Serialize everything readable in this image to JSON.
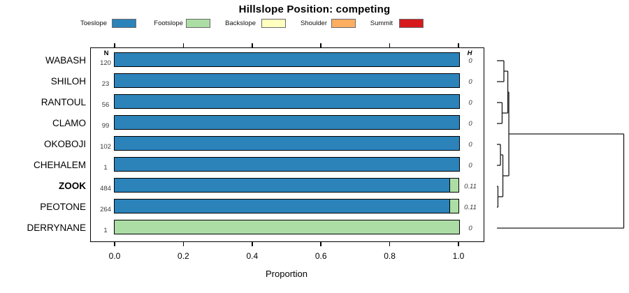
{
  "title": "Hillslope Position: competing",
  "columns": {
    "n": "N",
    "h": "H"
  },
  "legend": {
    "items": [
      {
        "label": "Toeslope",
        "color": "#2B83BA"
      },
      {
        "label": "Footslope",
        "color": "#ABDDA4"
      },
      {
        "label": "Backslope",
        "color": "#FFFFBF"
      },
      {
        "label": "Shoulder",
        "color": "#FDAE61"
      },
      {
        "label": "Summit",
        "color": "#D7191C"
      }
    ]
  },
  "chart_data": {
    "type": "bar",
    "orientation": "horizontal",
    "stacked": true,
    "title": "Hillslope Position: competing",
    "xlabel": "Proportion",
    "xlim": [
      0,
      1
    ],
    "xticks": [
      "0.0",
      "0.2",
      "0.4",
      "0.6",
      "0.8",
      "1.0"
    ],
    "grid": false,
    "legend_position": "top",
    "categories": [
      "Toeslope",
      "Footslope",
      "Backslope",
      "Shoulder",
      "Summit"
    ],
    "category_colors": {
      "Toeslope": "#2B83BA",
      "Footslope": "#ABDDA4",
      "Backslope": "#FFFFBF",
      "Shoulder": "#FDAE61",
      "Summit": "#D7191C"
    },
    "rows": [
      {
        "label": "WABASH",
        "n": 120,
        "h": "0",
        "bold": false,
        "segments": [
          {
            "name": "Toeslope",
            "value": 1.0
          }
        ]
      },
      {
        "label": "SHILOH",
        "n": 23,
        "h": "0",
        "bold": false,
        "segments": [
          {
            "name": "Toeslope",
            "value": 1.0
          }
        ]
      },
      {
        "label": "RANTOUL",
        "n": 56,
        "h": "0",
        "bold": false,
        "segments": [
          {
            "name": "Toeslope",
            "value": 1.0
          }
        ]
      },
      {
        "label": "CLAMO",
        "n": 99,
        "h": "0",
        "bold": false,
        "segments": [
          {
            "name": "Toeslope",
            "value": 1.0
          }
        ]
      },
      {
        "label": "OKOBOJI",
        "n": 102,
        "h": "0",
        "bold": false,
        "segments": [
          {
            "name": "Toeslope",
            "value": 1.0
          }
        ]
      },
      {
        "label": "CHEHALEM",
        "n": 1,
        "h": "0",
        "bold": false,
        "segments": [
          {
            "name": "Toeslope",
            "value": 1.0
          }
        ]
      },
      {
        "label": "ZOOK",
        "n": 484,
        "h": "0.11",
        "bold": true,
        "segments": [
          {
            "name": "Toeslope",
            "value": 0.977
          },
          {
            "name": "Footslope",
            "value": 0.023
          }
        ]
      },
      {
        "label": "PEOTONE",
        "n": 264,
        "h": "0.11",
        "bold": false,
        "segments": [
          {
            "name": "Toeslope",
            "value": 0.977
          },
          {
            "name": "Footslope",
            "value": 0.023
          }
        ]
      },
      {
        "label": "DERRYNANE",
        "n": 1,
        "h": "0",
        "bold": false,
        "segments": [
          {
            "name": "Footslope",
            "value": 1.0
          }
        ]
      }
    ],
    "dendrogram": {
      "leaves": [
        "WABASH",
        "SHILOH",
        "RANTOUL",
        "CLAMO",
        "OKOBOJI",
        "CHEHALEM",
        "ZOOK",
        "PEOTONE",
        "DERRYNANE"
      ],
      "merges": [
        {
          "a": "WABASH",
          "b": "SHILOH",
          "height": 0.055
        },
        {
          "a": "RANTOUL",
          "b": "CLAMO",
          "height": 0.041
        },
        {
          "a": "M0",
          "b": "M1",
          "height": 0.086
        },
        {
          "a": "OKOBOJI",
          "b": "CHEHALEM",
          "height": 0.028
        },
        {
          "a": "ZOOK",
          "b": "PEOTONE",
          "height": 0.008
        },
        {
          "a": "M3",
          "b": "M4",
          "height": 0.047
        },
        {
          "a": "M2",
          "b": "M5",
          "height": 0.094
        },
        {
          "a": "M6",
          "b": "DERRYNANE",
          "height": 1.0
        }
      ]
    }
  }
}
